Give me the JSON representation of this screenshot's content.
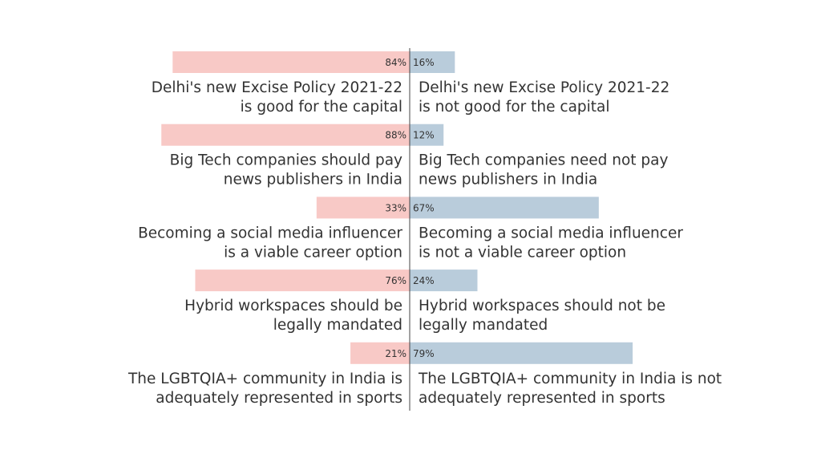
{
  "colors": {
    "agree_bar": "#f8c9c6",
    "disagree_bar": "#b9ccdb",
    "divider": "#444444",
    "text": "#333333"
  },
  "chart_data": {
    "type": "bar",
    "orientation": "horizontal-diverging",
    "xlim": [
      0,
      100
    ],
    "unit": "%",
    "grid": false,
    "legend": "none",
    "title": "",
    "rows": [
      {
        "left_value": 84,
        "right_value": 16,
        "left_value_label": "84%",
        "right_value_label": "16%",
        "left_statement": [
          "Delhi's new Excise Policy 2021-22",
          "is good for the capital"
        ],
        "right_statement": [
          "Delhi's new Excise Policy 2021-22",
          "is not good for the capital"
        ]
      },
      {
        "left_value": 88,
        "right_value": 12,
        "left_value_label": "88%",
        "right_value_label": "12%",
        "left_statement": [
          "Big Tech companies should pay",
          "news publishers in India"
        ],
        "right_statement": [
          "Big Tech companies need not pay",
          "news publishers in India"
        ]
      },
      {
        "left_value": 33,
        "right_value": 67,
        "left_value_label": "33%",
        "right_value_label": "67%",
        "left_statement": [
          "Becoming a social media influencer",
          "is a viable career option"
        ],
        "right_statement": [
          "Becoming a social media influencer",
          "is not a viable career option"
        ]
      },
      {
        "left_value": 76,
        "right_value": 24,
        "left_value_label": "76%",
        "right_value_label": "24%",
        "left_statement": [
          "Hybrid workspaces should be",
          "legally mandated"
        ],
        "right_statement": [
          "Hybrid workspaces should not be",
          "legally mandated"
        ]
      },
      {
        "left_value": 21,
        "right_value": 79,
        "left_value_label": "21%",
        "right_value_label": "79%",
        "left_statement": [
          "The LGBTQIA+ community in India is",
          "adequately represented in sports"
        ],
        "right_statement": [
          "The LGBTQIA+ community in India is not",
          "adequately represented in sports"
        ]
      }
    ]
  }
}
